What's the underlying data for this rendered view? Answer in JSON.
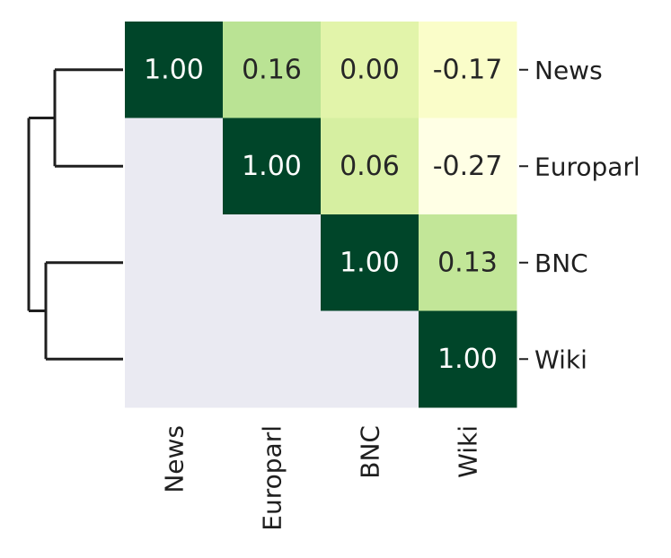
{
  "chart_data": {
    "type": "heatmap",
    "rows": [
      "News",
      "Europarl",
      "BNC",
      "Wiki"
    ],
    "cols": [
      "News",
      "Europarl",
      "BNC",
      "Wiki"
    ],
    "values": [
      [
        1.0,
        0.16,
        0.0,
        -0.17
      ],
      [
        null,
        1.0,
        0.06,
        -0.27
      ],
      [
        null,
        null,
        1.0,
        0.13
      ],
      [
        null,
        null,
        null,
        1.0
      ]
    ],
    "value_labels": [
      [
        "1.00",
        "0.16",
        "0.00",
        "-0.17"
      ],
      [
        "",
        "1.00",
        "0.06",
        "-0.27"
      ],
      [
        "",
        "",
        "1.00",
        "0.13"
      ],
      [
        "",
        "",
        "",
        "1.00"
      ]
    ],
    "masked": "lower-triangle",
    "colormap": "YlGn",
    "vrange": [
      -0.27,
      1.0
    ],
    "row_label_position": "right",
    "col_label_rotation": "vertical",
    "dendrogram": {
      "side": "left",
      "clusters": [
        [
          "News",
          "Europarl"
        ],
        [
          "BNC",
          "Wiki"
        ]
      ]
    },
    "colors": {
      "mask": "#eaeaf2",
      "low_text": "#262626",
      "high_text": "#ffffff",
      "dendrogram": "#1f1f1f"
    }
  }
}
